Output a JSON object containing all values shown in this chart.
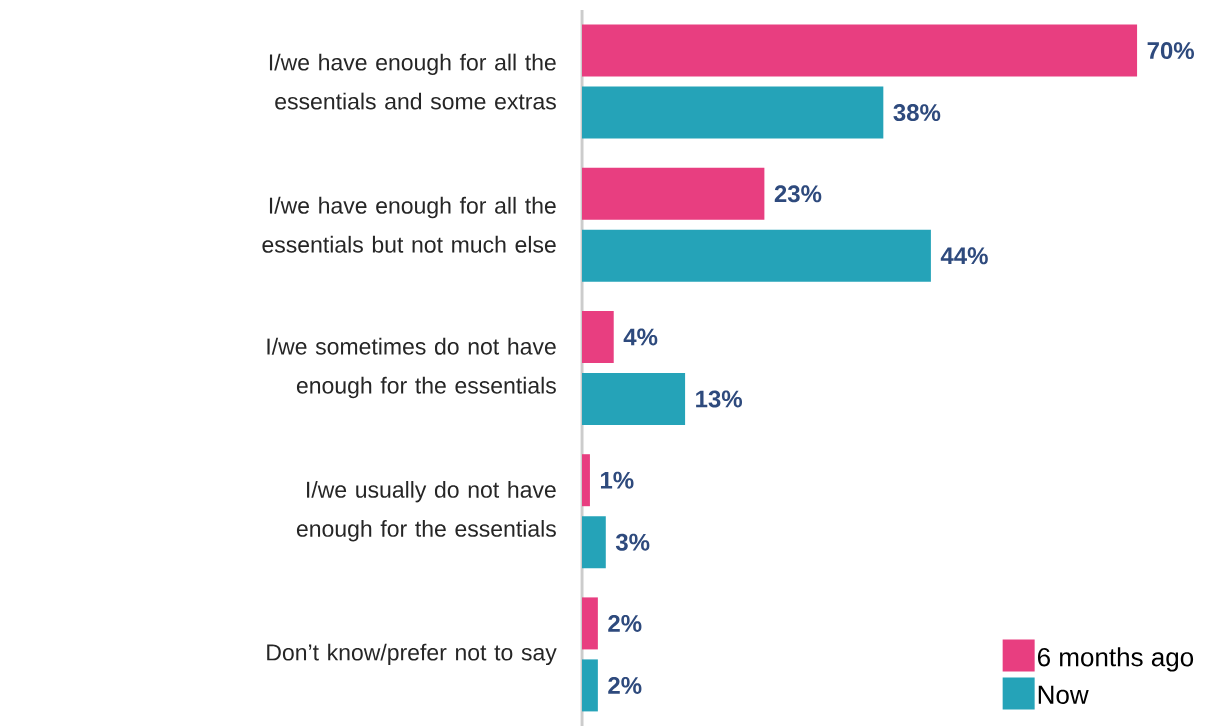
{
  "chart_data": {
    "type": "bar",
    "orientation": "horizontal",
    "categories": [
      "I/we have enough for all the essentials and some extras",
      "I/we have enough for all the essentials but not much else",
      "I/we sometimes do not have enough for the essentials",
      "I/we usually do not have enough for the essentials",
      "Don’t know/prefer not to say"
    ],
    "series": [
      {
        "name": "6 months ago",
        "color": "#e83e80",
        "values": [
          70,
          23,
          4,
          1,
          2
        ],
        "value_labels": [
          "70%",
          "23%",
          "4%",
          "1%",
          "2%"
        ]
      },
      {
        "name": "Now",
        "color": "#25a3b8",
        "values": [
          38,
          44,
          13,
          3,
          2
        ],
        "value_labels": [
          "38%",
          "44%",
          "13%",
          "3%",
          "2%"
        ]
      }
    ],
    "legend": "bottom right",
    "tick_labels": "y"
  }
}
